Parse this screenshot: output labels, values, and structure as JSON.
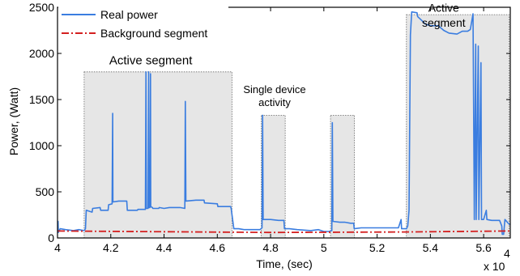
{
  "chart_data": {
    "type": "line",
    "title": "",
    "xlabel": "Time, (sec)",
    "ylabel": "Power, (Watt)",
    "x_multiplier": "x 10",
    "x_multiplier_exp": "4",
    "xlim": [
      40000,
      57000
    ],
    "ylim": [
      0,
      2500
    ],
    "x_ticks": [
      40000,
      42000,
      44000,
      46000,
      48000,
      50000,
      52000,
      54000,
      56000
    ],
    "x_tick_labels": [
      "4",
      "4.2",
      "4.4",
      "4.6",
      "4.8",
      "5",
      "5.2",
      "5.4",
      "5.6"
    ],
    "y_ticks": [
      0,
      500,
      1000,
      1500,
      2000,
      2500
    ],
    "y_tick_labels": [
      "0",
      "500",
      "1000",
      "1500",
      "2000",
      "2500"
    ],
    "grid": false,
    "legend_position": "top-left",
    "colors": {
      "real_power": "#3a7de0",
      "background": "#d42020",
      "segment_fill": "#e6e6e6"
    },
    "series": [
      {
        "name": "Real power",
        "style": "solid",
        "points": [
          [
            40000,
            180
          ],
          [
            40020,
            180
          ],
          [
            40030,
            60
          ],
          [
            40100,
            100
          ],
          [
            40300,
            90
          ],
          [
            40600,
            80
          ],
          [
            40800,
            90
          ],
          [
            41000,
            80
          ],
          [
            41050,
            100
          ],
          [
            41080,
            300
          ],
          [
            41300,
            280
          ],
          [
            41320,
            320
          ],
          [
            41600,
            330
          ],
          [
            41620,
            300
          ],
          [
            41900,
            300
          ],
          [
            41920,
            360
          ],
          [
            42050,
            370
          ],
          [
            42070,
            1350
          ],
          [
            42080,
            390
          ],
          [
            42300,
            400
          ],
          [
            42600,
            400
          ],
          [
            42620,
            300
          ],
          [
            43000,
            300
          ],
          [
            43020,
            310
          ],
          [
            43300,
            310
          ],
          [
            43320,
            1800
          ],
          [
            43340,
            320
          ],
          [
            43400,
            320
          ],
          [
            43420,
            1800
          ],
          [
            43430,
            330
          ],
          [
            43470,
            330
          ],
          [
            43490,
            1780
          ],
          [
            43500,
            340
          ],
          [
            43560,
            330
          ],
          [
            43580,
            320
          ],
          [
            43800,
            320
          ],
          [
            43820,
            330
          ],
          [
            44000,
            320
          ],
          [
            44200,
            330
          ],
          [
            44400,
            330
          ],
          [
            44600,
            330
          ],
          [
            44780,
            320
          ],
          [
            44800,
            1480
          ],
          [
            44820,
            400
          ],
          [
            45200,
            410
          ],
          [
            45500,
            410
          ],
          [
            45520,
            380
          ],
          [
            46000,
            370
          ],
          [
            46020,
            340
          ],
          [
            46500,
            340
          ],
          [
            46520,
            320
          ],
          [
            46620,
            100
          ],
          [
            46800,
            100
          ],
          [
            47000,
            90
          ],
          [
            47400,
            90
          ],
          [
            47600,
            90
          ],
          [
            47680,
            110
          ],
          [
            47700,
            1330
          ],
          [
            47720,
            200
          ],
          [
            48000,
            200
          ],
          [
            48300,
            190
          ],
          [
            48500,
            190
          ],
          [
            48520,
            100
          ],
          [
            48700,
            100
          ],
          [
            49000,
            90
          ],
          [
            49500,
            80
          ],
          [
            49800,
            90
          ],
          [
            50000,
            70
          ],
          [
            50200,
            70
          ],
          [
            50300,
            80
          ],
          [
            50320,
            1250
          ],
          [
            50340,
            180
          ],
          [
            50600,
            170
          ],
          [
            50800,
            170
          ],
          [
            51000,
            160
          ],
          [
            51120,
            160
          ],
          [
            51140,
            100
          ],
          [
            51400,
            110
          ],
          [
            51800,
            110
          ],
          [
            52200,
            110
          ],
          [
            52600,
            110
          ],
          [
            52800,
            110
          ],
          [
            52900,
            200
          ],
          [
            52920,
            100
          ],
          [
            53100,
            100
          ],
          [
            53150,
            130
          ],
          [
            53170,
            200
          ],
          [
            53200,
            300
          ],
          [
            53250,
            2200
          ],
          [
            53300,
            2450
          ],
          [
            53500,
            2440
          ],
          [
            53520,
            2400
          ],
          [
            53700,
            2350
          ],
          [
            53800,
            2320
          ],
          [
            54000,
            2300
          ],
          [
            54300,
            2300
          ],
          [
            54500,
            2250
          ],
          [
            54700,
            2220
          ],
          [
            55000,
            2210
          ],
          [
            55200,
            2240
          ],
          [
            55400,
            2240
          ],
          [
            55500,
            2260
          ],
          [
            55600,
            2430
          ],
          [
            55650,
            200
          ],
          [
            55700,
            2100
          ],
          [
            55720,
            200
          ],
          [
            55800,
            2080
          ],
          [
            55820,
            200
          ],
          [
            55900,
            1900
          ],
          [
            55920,
            200
          ],
          [
            56000,
            200
          ],
          [
            56100,
            300
          ],
          [
            56120,
            200
          ],
          [
            56300,
            190
          ],
          [
            56500,
            190
          ],
          [
            56600,
            190
          ],
          [
            56680,
            130
          ],
          [
            56700,
            40
          ],
          [
            56750,
            40
          ],
          [
            56800,
            200
          ],
          [
            56950,
            150
          ],
          [
            57000,
            150
          ]
        ]
      },
      {
        "name": "Background segment",
        "style": "dash-dot",
        "points": [
          [
            40000,
            75
          ],
          [
            48000,
            60
          ],
          [
            53000,
            65
          ],
          [
            57000,
            75
          ]
        ]
      }
    ],
    "segments": [
      {
        "x0": 41000,
        "x1": 46550,
        "y1": 1800
      },
      {
        "x0": 47650,
        "x1": 48550,
        "y1": 1330
      },
      {
        "x0": 50250,
        "x1": 51150,
        "y1": 1330
      },
      {
        "x0": 53100,
        "x1": 56950,
        "y1": 2420
      }
    ],
    "annotations": [
      {
        "text": "Active segment",
        "x": 43500,
        "y": 1880
      },
      {
        "text": "Single device",
        "x": 48150,
        "y": 1570
      },
      {
        "text": "activity",
        "x": 48150,
        "y": 1430
      },
      {
        "text": "Active",
        "x": 54500,
        "y": 2450
      },
      {
        "text": "segment",
        "x": 54500,
        "y": 2290
      }
    ]
  }
}
